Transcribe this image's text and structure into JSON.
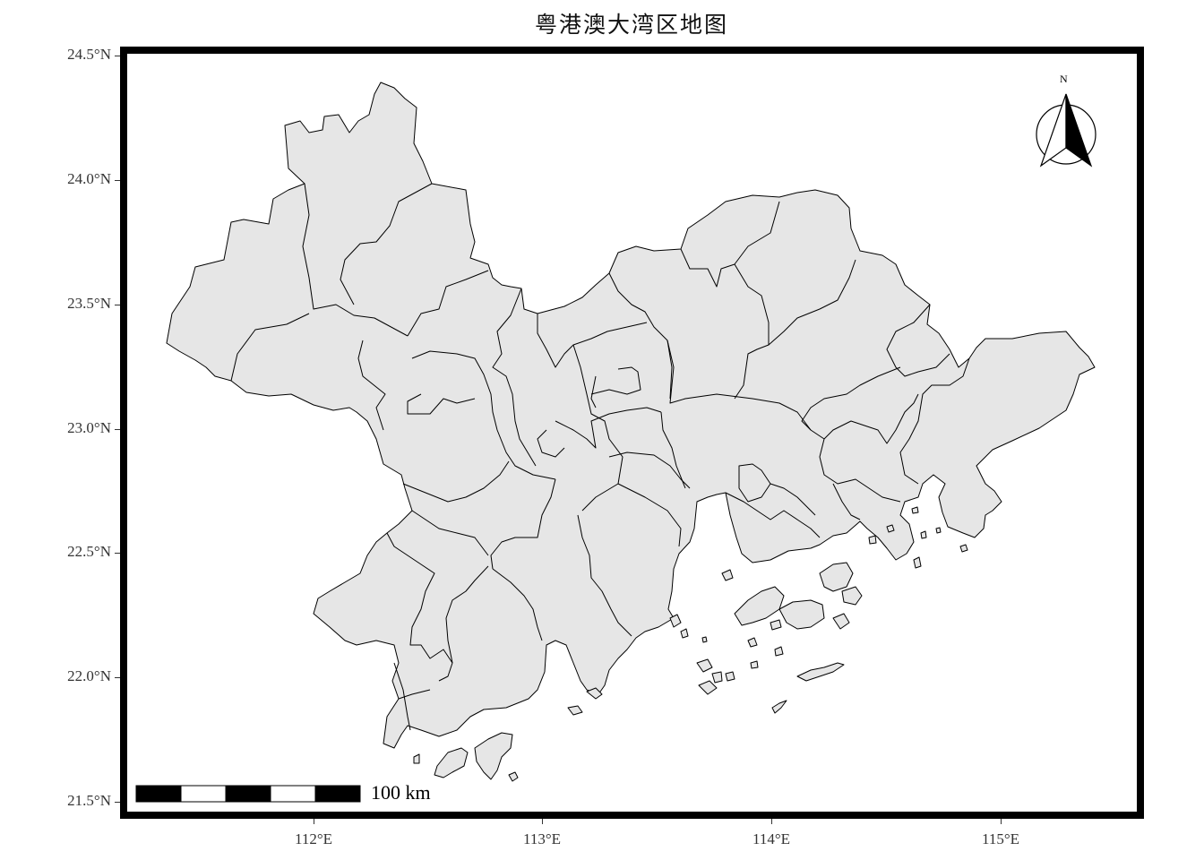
{
  "title": "粤港澳大湾区地图",
  "axes": {
    "y_ticks": [
      "24.5°N",
      "24.0°N",
      "23.5°N",
      "23.0°N",
      "22.5°N",
      "22.0°N",
      "21.5°N"
    ],
    "x_ticks": [
      "112°E",
      "113°E",
      "114°E",
      "115°E"
    ]
  },
  "north_arrow": {
    "label": "N"
  },
  "scale_bar": {
    "label": "100 km"
  },
  "colors": {
    "land": "#e6e6e6",
    "boundary": "#000000",
    "frame": "#000000",
    "background": "#ffffff"
  }
}
